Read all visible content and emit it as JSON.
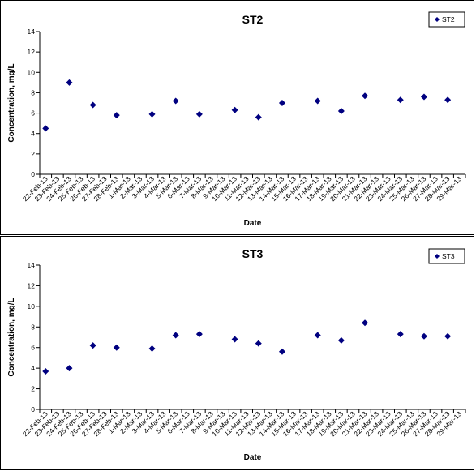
{
  "chart_data": [
    {
      "type": "scatter",
      "title": "ST2",
      "xlabel": "Date",
      "ylabel": "Concentration, mg/L",
      "ylim": [
        0,
        14
      ],
      "yticks": [
        0,
        2,
        4,
        6,
        8,
        10,
        12,
        14
      ],
      "grid": false,
      "legend_position": "top-right",
      "marker_color": "#000080",
      "categories": [
        "22-Feb-13",
        "23-Feb-13",
        "24-Feb-13",
        "25-Feb-13",
        "26-Feb-13",
        "27-Feb-13",
        "28-Feb-13",
        "1-Mar-13",
        "2-Mar-13",
        "3-Mar-13",
        "4-Mar-13",
        "5-Mar-13",
        "6-Mar-13",
        "7-Mar-13",
        "8-Mar-13",
        "9-Mar-13",
        "10-Mar-13",
        "11-Mar-13",
        "12-Mar-13",
        "13-Mar-13",
        "14-Mar-13",
        "15-Mar-13",
        "16-Mar-13",
        "17-Mar-13",
        "18-Mar-13",
        "19-Mar-13",
        "20-Mar-13",
        "21-Mar-13",
        "22-Mar-13",
        "23-Mar-13",
        "24-Mar-13",
        "25-Mar-13",
        "26-Mar-13",
        "27-Mar-13",
        "28-Mar-13",
        "29-Mar-13"
      ],
      "series": [
        {
          "name": "ST2",
          "points": [
            {
              "x": "22-Feb-13",
              "y": 4.5
            },
            {
              "x": "24-Feb-13",
              "y": 9.0
            },
            {
              "x": "26-Feb-13",
              "y": 6.8
            },
            {
              "x": "28-Feb-13",
              "y": 5.8
            },
            {
              "x": "3-Mar-13",
              "y": 5.9
            },
            {
              "x": "5-Mar-13",
              "y": 7.2
            },
            {
              "x": "7-Mar-13",
              "y": 5.9
            },
            {
              "x": "10-Mar-13",
              "y": 6.3
            },
            {
              "x": "12-Mar-13",
              "y": 5.6
            },
            {
              "x": "14-Mar-13",
              "y": 7.0
            },
            {
              "x": "17-Mar-13",
              "y": 7.2
            },
            {
              "x": "19-Mar-13",
              "y": 6.2
            },
            {
              "x": "21-Mar-13",
              "y": 7.7
            },
            {
              "x": "24-Mar-13",
              "y": 7.3
            },
            {
              "x": "26-Mar-13",
              "y": 7.6
            },
            {
              "x": "28-Mar-13",
              "y": 7.3
            }
          ]
        }
      ]
    },
    {
      "type": "scatter",
      "title": "ST3",
      "xlabel": "Date",
      "ylabel": "Concentration, mg/L",
      "ylim": [
        0,
        14
      ],
      "yticks": [
        0,
        2,
        4,
        6,
        8,
        10,
        12,
        14
      ],
      "grid": false,
      "legend_position": "top-right",
      "marker_color": "#000080",
      "categories": [
        "22-Feb-13",
        "23-Feb-13",
        "24-Feb-13",
        "25-Feb-13",
        "26-Feb-13",
        "27-Feb-13",
        "28-Feb-13",
        "1-Mar-13",
        "2-Mar-13",
        "3-Mar-13",
        "4-Mar-13",
        "5-Mar-13",
        "6-Mar-13",
        "7-Mar-13",
        "8-Mar-13",
        "9-Mar-13",
        "10-Mar-13",
        "11-Mar-13",
        "12-Mar-13",
        "13-Mar-13",
        "14-Mar-13",
        "15-Mar-13",
        "16-Mar-13",
        "17-Mar-13",
        "18-Mar-13",
        "19-Mar-13",
        "20-Mar-13",
        "21-Mar-13",
        "22-Mar-13",
        "23-Mar-13",
        "24-Mar-13",
        "25-Mar-13",
        "26-Mar-13",
        "27-Mar-13",
        "28-Mar-13",
        "29-Mar-13"
      ],
      "series": [
        {
          "name": "ST3",
          "points": [
            {
              "x": "22-Feb-13",
              "y": 3.7
            },
            {
              "x": "24-Feb-13",
              "y": 4.0
            },
            {
              "x": "26-Feb-13",
              "y": 6.2
            },
            {
              "x": "28-Feb-13",
              "y": 6.0
            },
            {
              "x": "3-Mar-13",
              "y": 5.9
            },
            {
              "x": "5-Mar-13",
              "y": 7.2
            },
            {
              "x": "7-Mar-13",
              "y": 7.3
            },
            {
              "x": "10-Mar-13",
              "y": 6.8
            },
            {
              "x": "12-Mar-13",
              "y": 6.4
            },
            {
              "x": "14-Mar-13",
              "y": 5.6
            },
            {
              "x": "17-Mar-13",
              "y": 7.2
            },
            {
              "x": "19-Mar-13",
              "y": 6.7
            },
            {
              "x": "21-Mar-13",
              "y": 8.4
            },
            {
              "x": "24-Mar-13",
              "y": 7.3
            },
            {
              "x": "26-Mar-13",
              "y": 7.1
            },
            {
              "x": "28-Mar-13",
              "y": 7.1
            }
          ]
        }
      ]
    }
  ]
}
